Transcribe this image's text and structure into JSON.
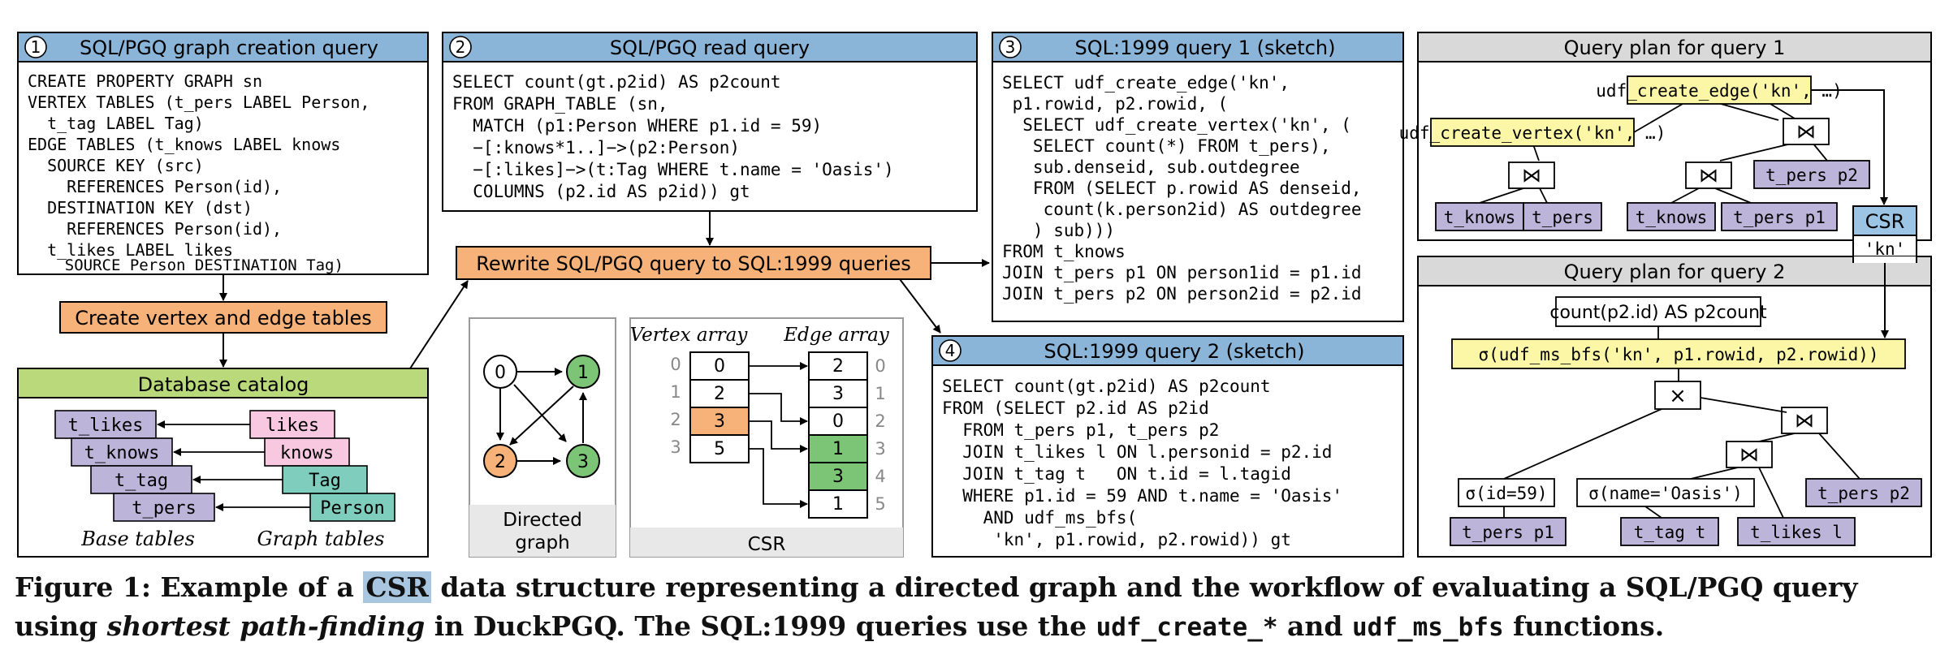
{
  "panel1": {
    "number": "1",
    "title": "SQL/PGQ graph creation query",
    "lines": [
      "CREATE PROPERTY GRAPH sn",
      "VERTEX TABLES (t_pers LABEL Person,",
      "  t_tag LABEL Tag)",
      "EDGE TABLES (t_knows LABEL knows",
      "  SOURCE KEY (src)",
      "    REFERENCES Person(id),",
      "  DESTINATION KEY (dst)",
      "    REFERENCES Person(id),",
      "  t_likes LABEL likes",
      "    SOURCE Person DESTINATION Tag)"
    ]
  },
  "panel2": {
    "number": "2",
    "title": "SQL/PGQ read query",
    "lines": [
      "SELECT count(gt.p2id) AS p2count",
      "FROM GRAPH_TABLE (sn,",
      "  MATCH (p1:Person WHERE p1.id = 59)",
      "  −[:knows*1..]−>(p2:Person)",
      "  −[:likes]−>(t:Tag WHERE t.name = 'Oasis')",
      "  COLUMNS (p2.id AS p2id)) gt"
    ]
  },
  "panel3": {
    "number": "3",
    "title": "SQL:1999 query 1 (sketch)",
    "lines": [
      "SELECT udf_create_edge('kn',",
      " p1.rowid, p2.rowid, (",
      "  SELECT udf_create_vertex('kn', (",
      "   SELECT count(*) FROM t_pers),",
      "   sub.denseid, sub.outdegree",
      "   FROM (SELECT p.rowid AS denseid,",
      "    count(k.person2id) AS outdegree",
      "   ) sub)))",
      "FROM t_knows",
      "JOIN t_pers p1 ON person1id = p1.id",
      "JOIN t_pers p2 ON person2id = p2.id"
    ]
  },
  "panel4": {
    "number": "4",
    "title": "SQL:1999 query 2 (sketch)",
    "lines": [
      "SELECT count(gt.p2id) AS p2count",
      "FROM (SELECT p2.id AS p2id",
      "  FROM t_pers p1, t_pers p2",
      "  JOIN t_likes l ON l.personid = p2.id",
      "  JOIN t_tag t   ON t.id = l.tagid",
      "  WHERE p1.id = 59 AND t.name = 'Oasis'",
      "    AND udf_ms_bfs(",
      "     'kn', p1.rowid, p2.rowid)) gt"
    ]
  },
  "create_tables_label": "Create vertex and edge tables",
  "rewrite_label": "Rewrite SQL/PGQ query to SQL:1999 queries",
  "catalog": {
    "title": "Database catalog",
    "base_tables": [
      "t_likes",
      "t_knows",
      "t_tag",
      "t_pers"
    ],
    "graph_tables": [
      "likes",
      "knows",
      "Tag",
      "Person"
    ],
    "base_caption": "Base tables",
    "graph_caption": "Graph tables"
  },
  "graph": {
    "nodes": [
      "0",
      "1",
      "2",
      "3"
    ],
    "caption_line1": "Directed",
    "caption_line2": "graph"
  },
  "csr": {
    "vertex_header": "Vertex array",
    "edge_header": "Edge array",
    "vertex_index": [
      "0",
      "1",
      "2",
      "3"
    ],
    "vertex_values": [
      "0",
      "2",
      "3",
      "5"
    ],
    "edge_values": [
      "2",
      "3",
      "0",
      "1",
      "3",
      "1"
    ],
    "edge_index": [
      "0",
      "1",
      "2",
      "3",
      "4",
      "5"
    ],
    "caption": "CSR"
  },
  "plan1": {
    "title": "Query plan for query 1",
    "create_edge": "udf_create_edge('kn', …)",
    "create_vertex": "udf_create_vertex('kn', …)",
    "join_symbol": "⋈",
    "leaves": [
      "t_knows",
      "t_pers",
      "t_knows",
      "t_pers p1",
      "t_pers p2"
    ]
  },
  "csr_box": {
    "title": "CSR",
    "value": "'kn'"
  },
  "plan2": {
    "title": "Query plan for query 2",
    "count": "count(p2.id) AS p2count",
    "bfs_filter": "σ(udf_ms_bfs('kn', p1.rowid, p2.rowid))",
    "cross_symbol": "×",
    "join_symbol": "⋈",
    "filter_id": "σ(id=59)",
    "filter_name": "σ(name='Oasis')",
    "leaves": [
      "t_pers p1",
      "t_tag t",
      "t_likes l",
      "t_pers p2"
    ]
  },
  "caption": {
    "part1": "Figure 1: Example of a ",
    "highlight": "CSR",
    "part2": " data structure representing a directed graph and the workflow of evaluating a SQL/PGQ query",
    "part3": "using ",
    "italic": "shortest path-finding",
    "part4": " in DuckPGQ. The SQL:1999 queries use the ",
    "code1": "udf_create_*",
    "part5": " and ",
    "code2": "udf_ms_bfs",
    "part6": " functions."
  },
  "colors": {
    "blue_header": "#8ab4d8",
    "orange": "#f7b27a",
    "green_header": "#b9d97a",
    "lavender": "#bcb4d9",
    "pink": "#f7c8e0",
    "teal": "#7fcdbd",
    "yellow": "#fbf7a6",
    "gray_header": "#d9d9d9",
    "node_green": "#7cc576",
    "node_orange": "#f7b27a",
    "csr_blue": "#9cc4e4"
  }
}
